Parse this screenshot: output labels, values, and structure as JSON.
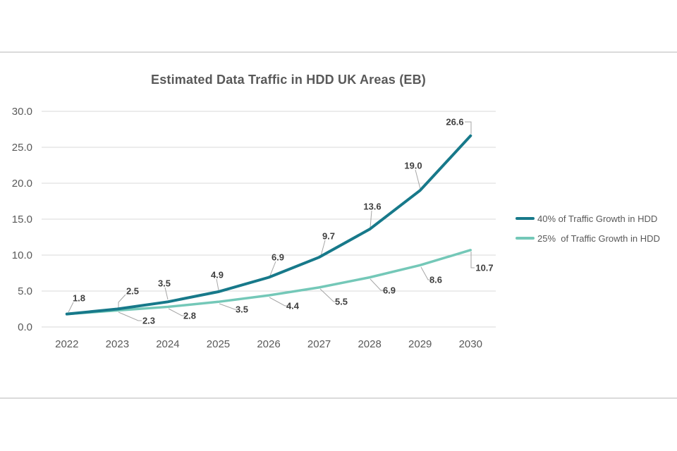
{
  "page": {
    "title": "Estimated Data Traffic in HDD UK Areas (EB)"
  },
  "chart_data": {
    "type": "line",
    "title": "Estimated Data Traffic in HDD UK Areas (EB)",
    "x": [
      "2022",
      "2023",
      "2024",
      "2025",
      "2026",
      "2027",
      "2028",
      "2029",
      "2030"
    ],
    "series": [
      {
        "name": "40% of Traffic Growth in HDD",
        "color": "#17798A",
        "values": [
          1.8,
          2.5,
          3.5,
          4.9,
          6.9,
          9.7,
          13.6,
          19.0,
          26.6
        ],
        "point_labels": [
          "1.8",
          "2.5",
          "3.5",
          "4.9",
          "6.9",
          "9.7",
          "13.6",
          "19.0",
          "26.6"
        ],
        "label_placement": "above"
      },
      {
        "name": "25%  of Traffic Growth in HDD",
        "color": "#74C8B8",
        "values": [
          1.8,
          2.3,
          2.8,
          3.5,
          4.4,
          5.5,
          6.9,
          8.6,
          10.7
        ],
        "point_labels": [
          "",
          "2.3",
          "2.8",
          "3.5",
          "4.4",
          "5.5",
          "6.9",
          "8.6",
          "10.7"
        ],
        "label_placement": "below"
      }
    ],
    "ylim": [
      0,
      30
    ],
    "ytick_step": 5,
    "ytick_labels": [
      "0.0",
      "5.0",
      "10.0",
      "15.0",
      "20.0",
      "25.0",
      "30.0"
    ],
    "grid": true,
    "legend_position": "right",
    "colors": {
      "grid": "#D9D9D9",
      "leader_line": "#A6A6A6",
      "data_label": "#3F3F3F",
      "axis_text": "#595959",
      "title_text": "#595959",
      "divider": "#DADADA"
    }
  }
}
